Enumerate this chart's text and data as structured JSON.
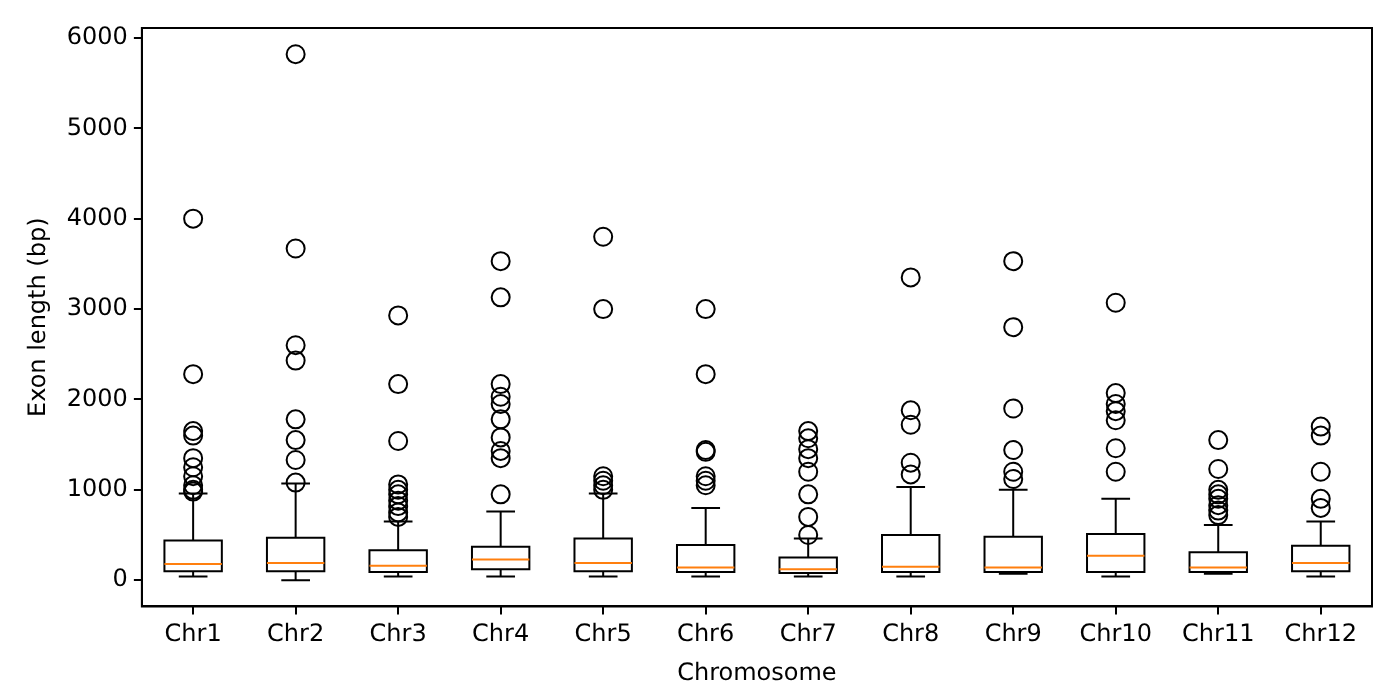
{
  "chart_data": {
    "type": "box",
    "xlabel": "Chromosome",
    "ylabel": "Exon length (bp)",
    "categories": [
      "Chr1",
      "Chr2",
      "Chr3",
      "Chr4",
      "Chr5",
      "Chr6",
      "Chr7",
      "Chr8",
      "Chr9",
      "Chr10",
      "Chr11",
      "Chr12"
    ],
    "ylim": [
      -290,
      6110
    ],
    "yticks": [
      0,
      1000,
      2000,
      3000,
      4000,
      5000,
      6000
    ],
    "marker": "circle",
    "boxes": [
      {
        "low": 40,
        "q1": 100,
        "median": 180,
        "q3": 440,
        "high": 960,
        "outliers": [
          4000,
          2280,
          1650,
          1600,
          1350,
          1250,
          1150,
          1050,
          1000,
          980
        ]
      },
      {
        "low": 0,
        "q1": 100,
        "median": 190,
        "q3": 470,
        "high": 1070,
        "outliers": [
          5820,
          3670,
          2600,
          2430,
          1780,
          1550,
          1330,
          1080
        ]
      },
      {
        "low": 40,
        "q1": 90,
        "median": 160,
        "q3": 330,
        "high": 650,
        "outliers": [
          2930,
          2170,
          1540,
          1060,
          1000,
          950,
          880,
          820,
          750,
          700
        ]
      },
      {
        "low": 40,
        "q1": 120,
        "median": 230,
        "q3": 370,
        "high": 760,
        "outliers": [
          3530,
          3130,
          2170,
          2030,
          1950,
          1780,
          1580,
          1430,
          1350,
          950
        ]
      },
      {
        "low": 40,
        "q1": 100,
        "median": 190,
        "q3": 460,
        "high": 960,
        "outliers": [
          3800,
          3000,
          1150,
          1100,
          1050,
          1000
        ]
      },
      {
        "low": 40,
        "q1": 90,
        "median": 140,
        "q3": 390,
        "high": 800,
        "outliers": [
          3000,
          2280,
          1440,
          1420,
          1150,
          1100,
          1050
        ]
      },
      {
        "low": 40,
        "q1": 80,
        "median": 120,
        "q3": 250,
        "high": 460,
        "outliers": [
          1650,
          1570,
          1450,
          1350,
          1200,
          950,
          700,
          500
        ]
      },
      {
        "low": 40,
        "q1": 90,
        "median": 150,
        "q3": 500,
        "high": 1030,
        "outliers": [
          3350,
          1880,
          1720,
          1300,
          1170
        ]
      },
      {
        "low": 70,
        "q1": 90,
        "median": 140,
        "q3": 480,
        "high": 1000,
        "outliers": [
          3530,
          2800,
          1900,
          1440,
          1200,
          1120
        ]
      },
      {
        "low": 40,
        "q1": 90,
        "median": 270,
        "q3": 510,
        "high": 900,
        "outliers": [
          3070,
          2070,
          1950,
          1870,
          1770,
          1460,
          1200
        ]
      },
      {
        "low": 70,
        "q1": 90,
        "median": 140,
        "q3": 310,
        "high": 610,
        "outliers": [
          1550,
          1230,
          1000,
          950,
          900,
          830,
          770,
          720
        ]
      },
      {
        "low": 40,
        "q1": 100,
        "median": 190,
        "q3": 380,
        "high": 650,
        "outliers": [
          1700,
          1600,
          1200,
          900,
          800
        ]
      }
    ]
  }
}
